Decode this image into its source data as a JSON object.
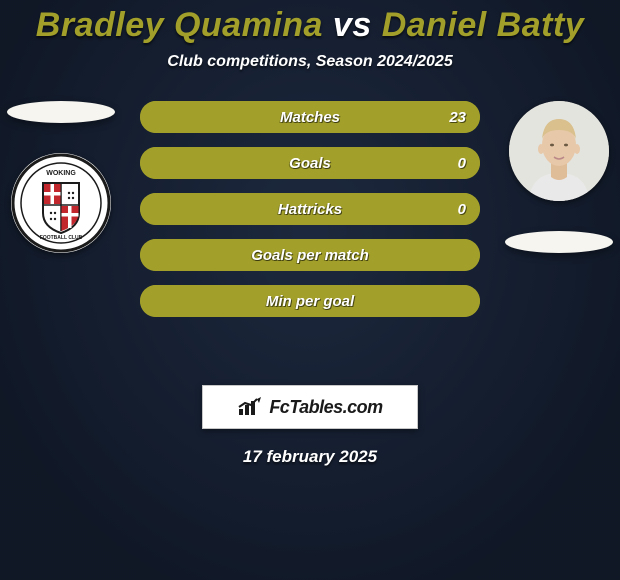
{
  "header": {
    "player1": "Bradley Quamina",
    "vs": "vs",
    "player2": "Daniel Batty",
    "subtitle": "Club competitions, Season 2024/2025",
    "player1_color": "#a2a02a",
    "vs_color": "#ffffff",
    "player2_color": "#a2a02a"
  },
  "colors": {
    "background": "#18243a",
    "pill_border": "#a2a02a",
    "pill_fill_p1": "#a2a02a",
    "pill_fill_p2": "#a2a02a",
    "text": "#ffffff",
    "shadow_ellipse": "#f6f5f0"
  },
  "stats": [
    {
      "label": "Matches",
      "p1": "",
      "p2": "23",
      "p1_pct": 0,
      "p2_pct": 100
    },
    {
      "label": "Goals",
      "p1": "",
      "p2": "0",
      "p1_pct": 0,
      "p2_pct": 100
    },
    {
      "label": "Hattricks",
      "p1": "",
      "p2": "0",
      "p1_pct": 0,
      "p2_pct": 100
    },
    {
      "label": "Goals per match",
      "p1": "",
      "p2": "",
      "p1_pct": 0,
      "p2_pct": 100
    },
    {
      "label": "Min per goal",
      "p1": "",
      "p2": "",
      "p1_pct": 0,
      "p2_pct": 100
    }
  ],
  "brand": {
    "text": "FcTables.com"
  },
  "date": "17 february 2025",
  "left": {
    "crest": {
      "ring_outer": "#1b1b1b",
      "ring_inner": "#ffffff",
      "shield_border": "#1b1b1b",
      "shield_bg": "#ffffff",
      "red": "#c1272d",
      "label_top": "WOKING",
      "label_bottom": "FOOTBALL CLUB"
    }
  },
  "right": {
    "avatar": {
      "skin": "#e7c8a8",
      "hair": "#d9c08c",
      "shirt": "#e9e9e9",
      "bg": "#e4e4de"
    }
  }
}
